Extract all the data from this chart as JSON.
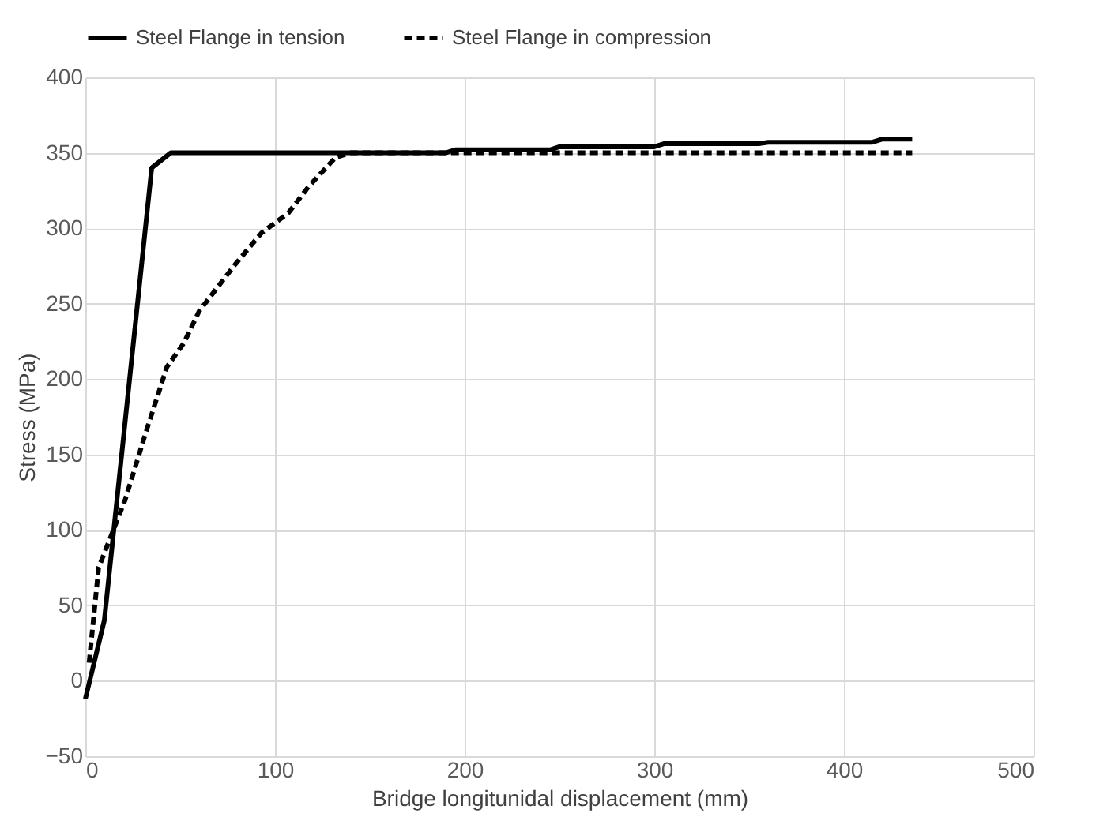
{
  "chart_data": {
    "type": "line",
    "xlabel": "Bridge longitunidal displacement (mm)",
    "ylabel": "Stress (MPa)",
    "xlim": [
      0,
      500
    ],
    "xticks": [
      0,
      100,
      200,
      300,
      400,
      500
    ],
    "ylim": [
      -50,
      400
    ],
    "yticks": [
      -50,
      0,
      50,
      100,
      150,
      200,
      250,
      300,
      350,
      400
    ],
    "grid": true,
    "legend": "top",
    "marker": "none",
    "series": [
      {
        "name": "Steel Flange in tension",
        "color": "#000000",
        "line_style": "solid",
        "x": [
          0,
          10,
          35,
          45,
          190,
          195,
          245,
          250,
          300,
          305,
          355,
          360,
          415,
          420,
          436
        ],
        "values": [
          -12,
          40,
          340,
          350,
          350,
          352,
          352,
          354,
          354,
          356,
          356,
          357,
          357,
          359,
          359
        ]
      },
      {
        "name": "Steel Flange in compression",
        "color": "#000000",
        "line_style": "dashed",
        "x": [
          2,
          7,
          21,
          32,
          43,
          52,
          60,
          79,
          93,
          107,
          118,
          132,
          140,
          436
        ],
        "values": [
          12,
          75,
          120,
          165,
          208,
          224,
          245,
          276,
          297,
          310,
          328,
          347,
          350,
          350
        ]
      }
    ]
  }
}
